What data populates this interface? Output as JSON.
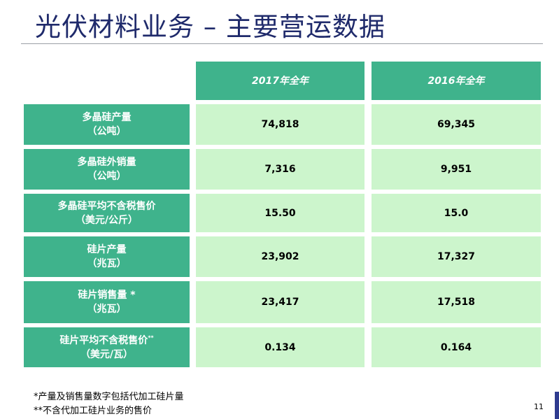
{
  "title": "光伏材料业务 – 主要营运数据",
  "columns": [
    "2017年全年",
    "2016年全年"
  ],
  "rows": [
    {
      "label": "多晶硅产量",
      "unit": "（公吨）",
      "note": "",
      "values": [
        "74,818",
        "69,345"
      ]
    },
    {
      "label": "多晶硅外销量",
      "unit": "（公吨）",
      "note": "",
      "values": [
        "7,316",
        "9,951"
      ]
    },
    {
      "label": "多晶硅平均不含税售价",
      "unit": "（美元/公斤）",
      "note": "",
      "values": [
        "15.50",
        "15.0"
      ]
    },
    {
      "label": "硅片产量",
      "unit": "（兆瓦）",
      "note": "",
      "values": [
        "23,902",
        "17,327"
      ]
    },
    {
      "label": "硅片销售量 *",
      "unit": "（兆瓦）",
      "note": "",
      "values": [
        "23,417",
        "17,518"
      ]
    },
    {
      "label": "硅片平均不含税售价",
      "unit": "（美元/瓦）",
      "note": "**",
      "values": [
        "0.134",
        "0.164"
      ]
    }
  ],
  "footnotes": [
    "*产量及销售量数字包括代加工硅片量",
    "**不含代加工硅片业务的售价"
  ],
  "page_number": "11",
  "colors": {
    "title": "#1f2a6b",
    "header_fill": "#3fb38c",
    "value_fill": "#ccf5cc"
  }
}
